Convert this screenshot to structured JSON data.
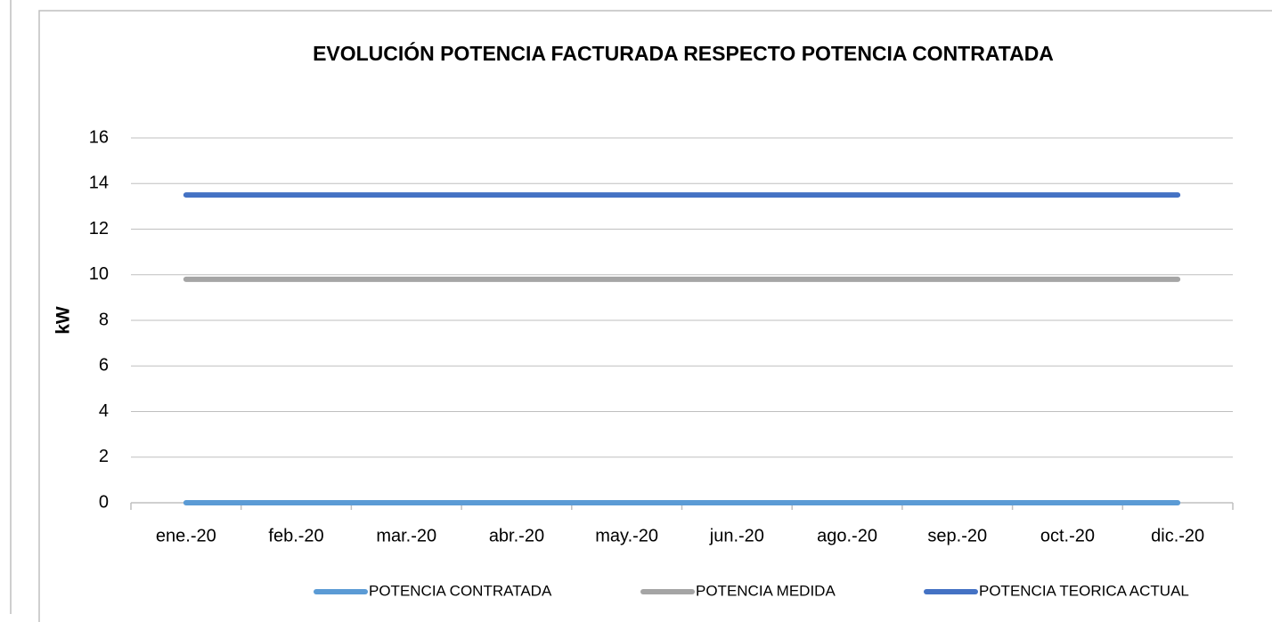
{
  "chart_data": {
    "type": "line",
    "title": "EVOLUCIÓN POTENCIA FACTURADA RESPECTO POTENCIA CONTRATADA",
    "y_label": "kW",
    "categories": [
      "ene.-20",
      "feb.-20",
      "mar.-20",
      "abr.-20",
      "may.-20",
      "jun.-20",
      "ago.-20",
      "sep.-20",
      "oct.-20",
      "dic.-20"
    ],
    "series": [
      {
        "name": "POTENCIA CONTRATADA",
        "color": "#5b9bd5",
        "values": [
          0,
          0,
          0,
          0,
          0,
          0,
          0,
          0,
          0,
          0
        ]
      },
      {
        "name": "POTENCIA MEDIDA",
        "color": "#a5a5a5",
        "values": [
          9.8,
          9.8,
          9.8,
          9.8,
          9.8,
          9.8,
          9.8,
          9.8,
          9.8,
          9.8
        ]
      },
      {
        "name": "POTENCIA TEORICA ACTUAL",
        "color": "#4472c4",
        "values": [
          13.5,
          13.5,
          13.5,
          13.5,
          13.5,
          13.5,
          13.5,
          13.5,
          13.5,
          13.5
        ]
      }
    ],
    "ylim": [
      0,
      16
    ],
    "yticks": [
      0,
      2,
      4,
      6,
      8,
      10,
      12,
      14,
      16
    ],
    "grid": true,
    "legend": "bottom"
  }
}
